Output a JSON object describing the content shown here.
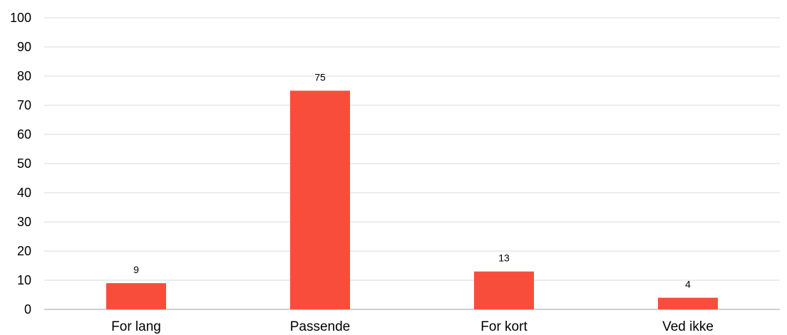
{
  "chart_data": {
    "type": "bar",
    "title": "",
    "xlabel": "",
    "ylabel": "",
    "categories": [
      "For lang",
      "Passende",
      "For kort",
      "Ved ikke"
    ],
    "values": [
      9,
      75,
      13,
      4
    ],
    "data_labels": [
      "9",
      "75",
      "13",
      "4"
    ],
    "ylim": [
      0,
      100
    ],
    "yticks": [
      0,
      10,
      20,
      30,
      40,
      50,
      60,
      70,
      80,
      90,
      100
    ],
    "bar_color": "#f94d3c",
    "grid": true,
    "legend": "none"
  }
}
